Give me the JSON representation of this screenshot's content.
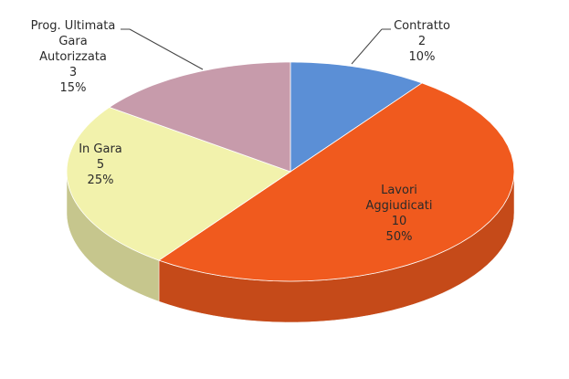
{
  "chart_data": {
    "type": "pie",
    "categories": [
      "Contratto",
      "Lavori\nAggiudicati",
      "In Gara",
      "Prog. Ultimata\nGara\nAutorizzata"
    ],
    "counts": [
      2,
      10,
      5,
      3
    ],
    "values": [
      10,
      50,
      25,
      15
    ],
    "value_labels": [
      "10%",
      "50%",
      "25%",
      "15%"
    ],
    "colors": [
      "#5b8fd6",
      "#f05a1e",
      "#f2f2ac",
      "#c79bab"
    ]
  }
}
